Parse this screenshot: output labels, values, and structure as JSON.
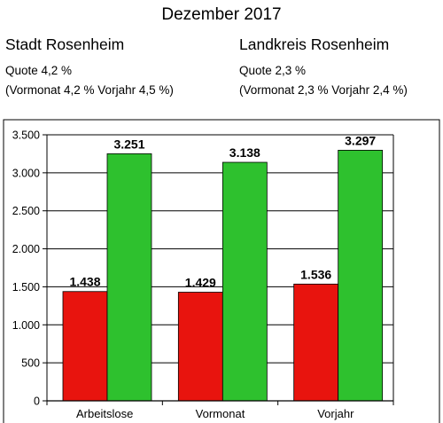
{
  "header": {
    "title": "Dezember 2017",
    "left": {
      "name": "Stadt Rosenheim",
      "quote": "Quote 4,2 %",
      "detail": "(Vormonat 4,2 % Vorjahr  4,5 %)"
    },
    "right": {
      "name": "Landkreis Rosenheim",
      "quote": "Quote 2,3 %",
      "detail": "(Vormonat 2,3 % Vorjahr 2,4 %)"
    }
  },
  "colors": {
    "red": "#e8140e",
    "green": "#2ec12e",
    "grid": "#000000"
  },
  "chart_data": {
    "type": "bar",
    "categories": [
      "Arbeitslose",
      "Vormonat",
      "Vorjahr"
    ],
    "series": [
      {
        "values": [
          1438,
          1429,
          1536
        ],
        "labels": [
          "1.438",
          "1.429",
          "1.536"
        ],
        "color": "#e8140e"
      },
      {
        "values": [
          3251,
          3138,
          3297
        ],
        "labels": [
          "3.251",
          "3.138",
          "3.297"
        ],
        "color": "#2ec12e"
      }
    ],
    "ylim": [
      0,
      3500
    ],
    "yticks": [
      0,
      500,
      1000,
      1500,
      2000,
      2500,
      3000,
      3500
    ],
    "ytick_labels": [
      "0",
      "500",
      "1.000",
      "1.500",
      "2.000",
      "2.500",
      "3.000",
      "3.500"
    ],
    "grid": true,
    "legend": "none"
  }
}
